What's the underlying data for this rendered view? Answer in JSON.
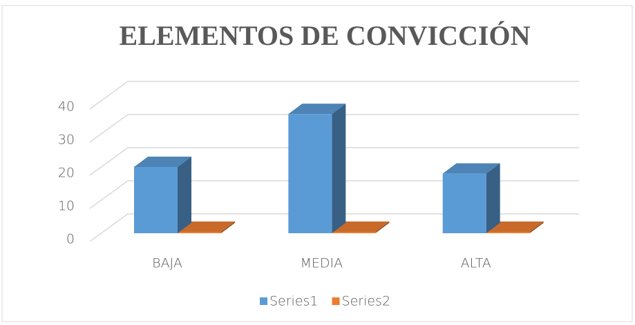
{
  "chart_data": {
    "type": "bar3d",
    "title": "ELEMENTOS DE CONVICCIÓN",
    "categories": [
      "BAJA",
      "MEDIA",
      "ALTA"
    ],
    "series": [
      {
        "name": "Series1",
        "color": "#5b9bd5",
        "values": [
          20,
          36,
          18
        ]
      },
      {
        "name": "Series2",
        "color": "#ed7d31",
        "values": [
          0,
          0,
          0
        ]
      }
    ],
    "ylim": [
      0,
      40
    ],
    "yticks": [
      0,
      10,
      20,
      30,
      40
    ],
    "grid": true,
    "legend": "bottom"
  }
}
